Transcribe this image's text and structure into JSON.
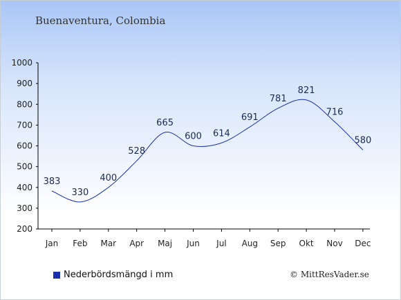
{
  "header": {
    "location": "Buenaventura, Colombia"
  },
  "legend": {
    "label": "Nederbördsmängd i mm",
    "color": "#1a2fb0"
  },
  "footer": {
    "copyright": "© MittResVader.se"
  },
  "chart_data": {
    "type": "line",
    "categories": [
      "Jan",
      "Feb",
      "Mar",
      "Apr",
      "Maj",
      "Jun",
      "Jul",
      "Aug",
      "Sep",
      "Okt",
      "Nov",
      "Dec"
    ],
    "series": [
      {
        "name": "Nederbördsmängd i mm",
        "values": [
          383,
          330,
          400,
          528,
          665,
          600,
          614,
          691,
          781,
          821,
          716,
          580
        ],
        "color": "#1a2fb0"
      }
    ],
    "ylim": [
      200,
      1000
    ],
    "yticks": [
      200,
      300,
      400,
      500,
      600,
      700,
      800,
      900,
      1000
    ],
    "legend_position": "bottom-left",
    "grid": false
  }
}
